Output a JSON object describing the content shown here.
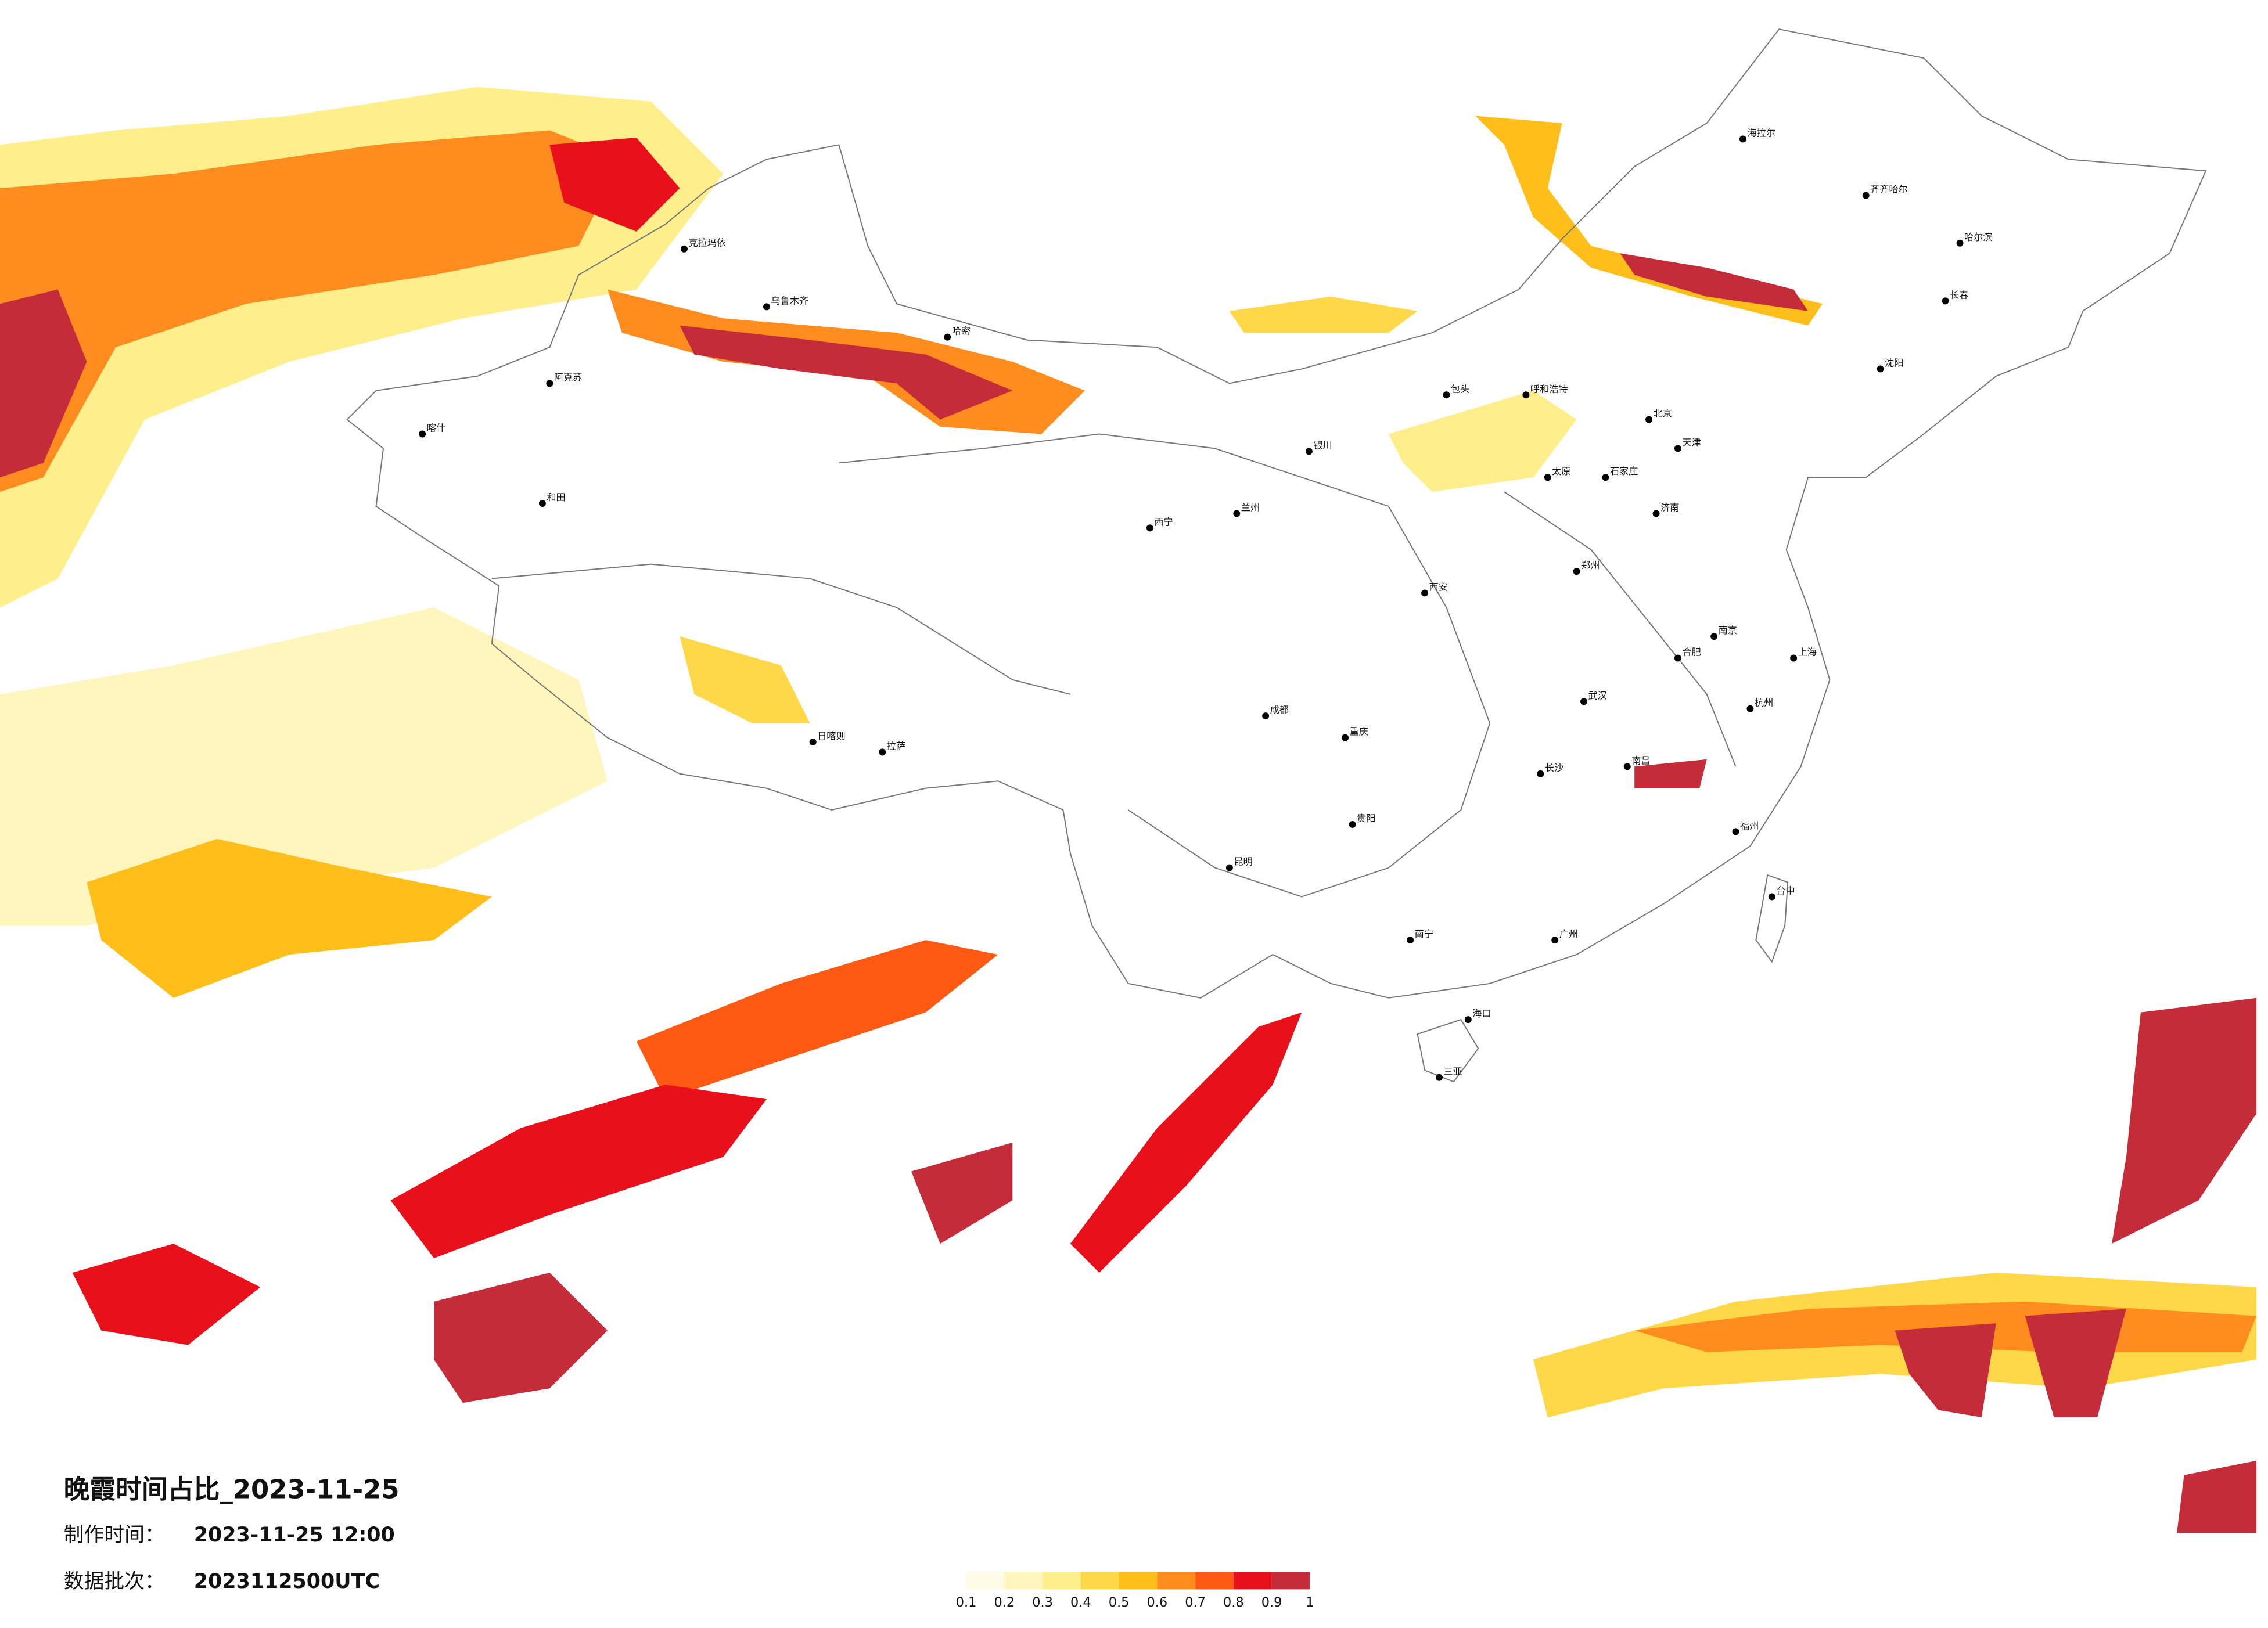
{
  "map": {
    "title": "晚霞时间占比_2023-11-25",
    "made_label": "制作时间：",
    "made_time": "2023-11-25 12:00",
    "batch_label": "数据批次：",
    "batch": "2023112500UTC",
    "legend": {
      "ticks": [
        0.1,
        0.2,
        0.3,
        0.4,
        0.5,
        0.6,
        0.7,
        0.8,
        0.9,
        1
      ],
      "colors": [
        "#fffbe6",
        "#fff6bd",
        "#ffee8c",
        "#ffd84a",
        "#ffbe1a",
        "#ff8c1f",
        "#ff5a14",
        "#e8101a",
        "#c42c3a"
      ]
    },
    "cities": [
      "海拉尔",
      "齐齐哈尔",
      "哈尔滨",
      "长春",
      "沈阳",
      "北京",
      "天津",
      "呼和浩特",
      "包头",
      "银川",
      "兰州",
      "西宁",
      "西安",
      "郑州",
      "济南",
      "太原",
      "石家庄",
      "南京",
      "上海",
      "杭州",
      "合肥",
      "武汉",
      "长沙",
      "南昌",
      "福州",
      "台中",
      "广州",
      "南宁",
      "海口",
      "三亚",
      "昆明",
      "贵阳",
      "成都",
      "重庆",
      "拉萨",
      "日喀则",
      "乌鲁木齐",
      "克拉玛依",
      "阿克苏",
      "喀什",
      "和田",
      "哈密"
    ]
  }
}
